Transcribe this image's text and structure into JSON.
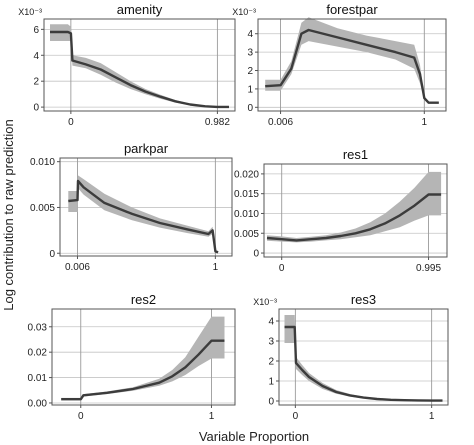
{
  "figure": {
    "ylabel": "Log contribution to raw prediction",
    "xlabel": "Variable Proportion"
  },
  "chart_data": [
    {
      "type": "line",
      "title": "amenity",
      "multiplier": "X10⁻³",
      "x_ticks": [
        {
          "value": 0,
          "label": "0"
        },
        {
          "value": 0.982,
          "label": "0.982"
        }
      ],
      "y_ticks": [
        {
          "value": 0,
          "label": "0"
        },
        {
          "value": 2,
          "label": "2"
        },
        {
          "value": 4,
          "label": "4"
        },
        {
          "value": 6,
          "label": "6"
        }
      ],
      "xlim": [
        -0.18,
        1.1
      ],
      "ylim": [
        -0.3,
        6.8
      ],
      "grid": true,
      "x": [
        -0.14,
        -0.12,
        -0.02,
        0,
        0.01,
        0.1,
        0.2,
        0.3,
        0.4,
        0.5,
        0.6,
        0.7,
        0.8,
        0.9,
        0.98,
        1.06
      ],
      "y": [
        5.8,
        5.8,
        5.8,
        5.7,
        3.6,
        3.3,
        2.9,
        2.3,
        1.7,
        1.2,
        0.8,
        0.45,
        0.2,
        0.06,
        0.02,
        0.02
      ],
      "upper": [
        6.4,
        6.4,
        6.4,
        6.2,
        4.0,
        3.8,
        3.4,
        2.7,
        2.0,
        1.4,
        0.95,
        0.55,
        0.25,
        0.08,
        0.03,
        0.03
      ],
      "lower": [
        5.1,
        5.1,
        5.1,
        5.1,
        3.2,
        3.0,
        2.5,
        1.9,
        1.4,
        1.0,
        0.65,
        0.35,
        0.15,
        0.04,
        0.01,
        0.01
      ]
    },
    {
      "type": "line",
      "title": "forestpar",
      "multiplier": "X10⁻³",
      "x_ticks": [
        {
          "value": 0.006,
          "label": "0.006"
        },
        {
          "value": 1,
          "label": "1"
        }
      ],
      "y_ticks": [
        {
          "value": 0,
          "label": "0"
        },
        {
          "value": 1,
          "label": "1"
        },
        {
          "value": 2,
          "label": "2"
        },
        {
          "value": 3,
          "label": "3"
        },
        {
          "value": 4,
          "label": "4"
        }
      ],
      "xlim": [
        -0.15,
        1.15
      ],
      "ylim": [
        -0.2,
        4.8
      ],
      "grid": true,
      "x": [
        -0.1,
        0.006,
        0.08,
        0.15,
        0.2,
        0.4,
        0.6,
        0.8,
        0.93,
        0.97,
        1.0,
        1.03,
        1.1
      ],
      "y": [
        1.15,
        1.2,
        2.1,
        4.0,
        4.2,
        3.8,
        3.4,
        3.0,
        2.7,
        1.8,
        0.5,
        0.25,
        0.25
      ],
      "upper": [
        1.5,
        1.5,
        2.5,
        4.6,
        4.9,
        4.3,
        3.9,
        3.6,
        3.4,
        2.3,
        0.6,
        0.3,
        0.3
      ],
      "lower": [
        0.9,
        0.9,
        1.8,
        3.4,
        3.6,
        3.3,
        3.0,
        2.6,
        2.1,
        1.3,
        0.4,
        0.2,
        0.2
      ]
    },
    {
      "type": "line",
      "title": "parkpar",
      "multiplier": "",
      "x_ticks": [
        {
          "value": 0.006,
          "label": "0.006"
        },
        {
          "value": 1,
          "label": "1"
        }
      ],
      "y_ticks": [
        {
          "value": 0,
          "label": "0"
        },
        {
          "value": 0.005,
          "label": "0.005"
        },
        {
          "value": 0.01,
          "label": "0.010"
        }
      ],
      "xlim": [
        -0.12,
        1.12
      ],
      "ylim": [
        -0.0003,
        0.0104
      ],
      "grid": true,
      "x": [
        -0.06,
        0.006,
        0.01,
        0.05,
        0.2,
        0.4,
        0.6,
        0.8,
        0.95,
        0.98,
        1.0,
        1.02
      ],
      "y": [
        0.0057,
        0.0058,
        0.0079,
        0.0072,
        0.0055,
        0.0043,
        0.0033,
        0.0026,
        0.0021,
        0.0025,
        0.0002,
        0.0001
      ],
      "upper": [
        0.0068,
        0.0068,
        0.0085,
        0.0081,
        0.0065,
        0.005,
        0.0038,
        0.003,
        0.0024,
        0.0029,
        0.0003,
        0.0002
      ],
      "lower": [
        0.0045,
        0.0045,
        0.0071,
        0.0064,
        0.0047,
        0.0036,
        0.0028,
        0.0022,
        0.0018,
        0.0021,
        0.0001,
        0.0001
      ]
    },
    {
      "type": "line",
      "title": "res1",
      "multiplier": "",
      "x_ticks": [
        {
          "value": 0,
          "label": "0"
        },
        {
          "value": 0.995,
          "label": "0.995"
        }
      ],
      "y_ticks": [
        {
          "value": 0,
          "label": "0"
        },
        {
          "value": 0.005,
          "label": "0.005"
        },
        {
          "value": 0.01,
          "label": "0.010"
        },
        {
          "value": 0.015,
          "label": "0.015"
        },
        {
          "value": 0.02,
          "label": "0.020"
        }
      ],
      "xlim": [
        -0.12,
        1.12
      ],
      "ylim": [
        -0.001,
        0.0225
      ],
      "grid": true,
      "x": [
        -0.1,
        0,
        0.1,
        0.2,
        0.3,
        0.4,
        0.5,
        0.6,
        0.7,
        0.8,
        0.9,
        0.995,
        1.08
      ],
      "y": [
        0.0038,
        0.0035,
        0.0032,
        0.0035,
        0.0038,
        0.0043,
        0.005,
        0.006,
        0.0075,
        0.0095,
        0.012,
        0.0148,
        0.0148
      ],
      "upper": [
        0.0045,
        0.0042,
        0.0038,
        0.0041,
        0.0045,
        0.0052,
        0.0062,
        0.0078,
        0.01,
        0.013,
        0.0165,
        0.0205,
        0.0205
      ],
      "lower": [
        0.0031,
        0.0029,
        0.0027,
        0.0029,
        0.0032,
        0.0035,
        0.004,
        0.0045,
        0.0055,
        0.0065,
        0.0082,
        0.0095,
        0.0095
      ]
    },
    {
      "type": "line",
      "title": "res2",
      "multiplier": "",
      "x_ticks": [
        {
          "value": 0,
          "label": "0"
        },
        {
          "value": 1,
          "label": "1"
        }
      ],
      "y_ticks": [
        {
          "value": 0,
          "label": "0.00"
        },
        {
          "value": 0.01,
          "label": "0.01"
        },
        {
          "value": 0.02,
          "label": "0.02"
        },
        {
          "value": 0.03,
          "label": "0.03"
        }
      ],
      "xlim": [
        -0.22,
        1.18
      ],
      "ylim": [
        -0.0008,
        0.037
      ],
      "grid": true,
      "x": [
        -0.15,
        0,
        0.02,
        0.2,
        0.4,
        0.6,
        0.7,
        0.8,
        0.9,
        1.0,
        1.1
      ],
      "y": [
        0.0015,
        0.0015,
        0.003,
        0.004,
        0.0055,
        0.008,
        0.0105,
        0.014,
        0.019,
        0.0245,
        0.0245
      ],
      "upper": [
        0.002,
        0.002,
        0.0035,
        0.0045,
        0.0062,
        0.0095,
        0.013,
        0.018,
        0.026,
        0.034,
        0.034
      ],
      "lower": [
        0.001,
        0.001,
        0.0025,
        0.0035,
        0.0048,
        0.0068,
        0.0085,
        0.011,
        0.0145,
        0.0175,
        0.0175
      ]
    },
    {
      "type": "line",
      "title": "res3",
      "multiplier": "X10⁻³",
      "x_ticks": [
        {
          "value": 0,
          "label": "0"
        },
        {
          "value": 1,
          "label": "1"
        }
      ],
      "y_ticks": [
        {
          "value": 0,
          "label": "0"
        },
        {
          "value": 1,
          "label": "1"
        },
        {
          "value": 2,
          "label": "2"
        },
        {
          "value": 3,
          "label": "3"
        },
        {
          "value": 4,
          "label": "4"
        }
      ],
      "xlim": [
        -0.12,
        1.12
      ],
      "ylim": [
        -0.2,
        4.6
      ],
      "grid": true,
      "x": [
        -0.08,
        -0.005,
        0.005,
        0.05,
        0.1,
        0.2,
        0.3,
        0.4,
        0.5,
        0.6,
        0.7,
        0.8,
        0.9,
        1.0,
        1.08
      ],
      "y": [
        3.7,
        3.7,
        1.9,
        1.55,
        1.2,
        0.75,
        0.45,
        0.28,
        0.17,
        0.1,
        0.06,
        0.04,
        0.03,
        0.02,
        0.02
      ],
      "upper": [
        4.3,
        4.3,
        2.2,
        1.8,
        1.4,
        0.9,
        0.55,
        0.35,
        0.22,
        0.13,
        0.08,
        0.05,
        0.04,
        0.03,
        0.03
      ],
      "lower": [
        2.9,
        2.9,
        1.6,
        1.3,
        1.0,
        0.6,
        0.36,
        0.22,
        0.13,
        0.07,
        0.04,
        0.03,
        0.02,
        0.01,
        0.01
      ]
    }
  ]
}
